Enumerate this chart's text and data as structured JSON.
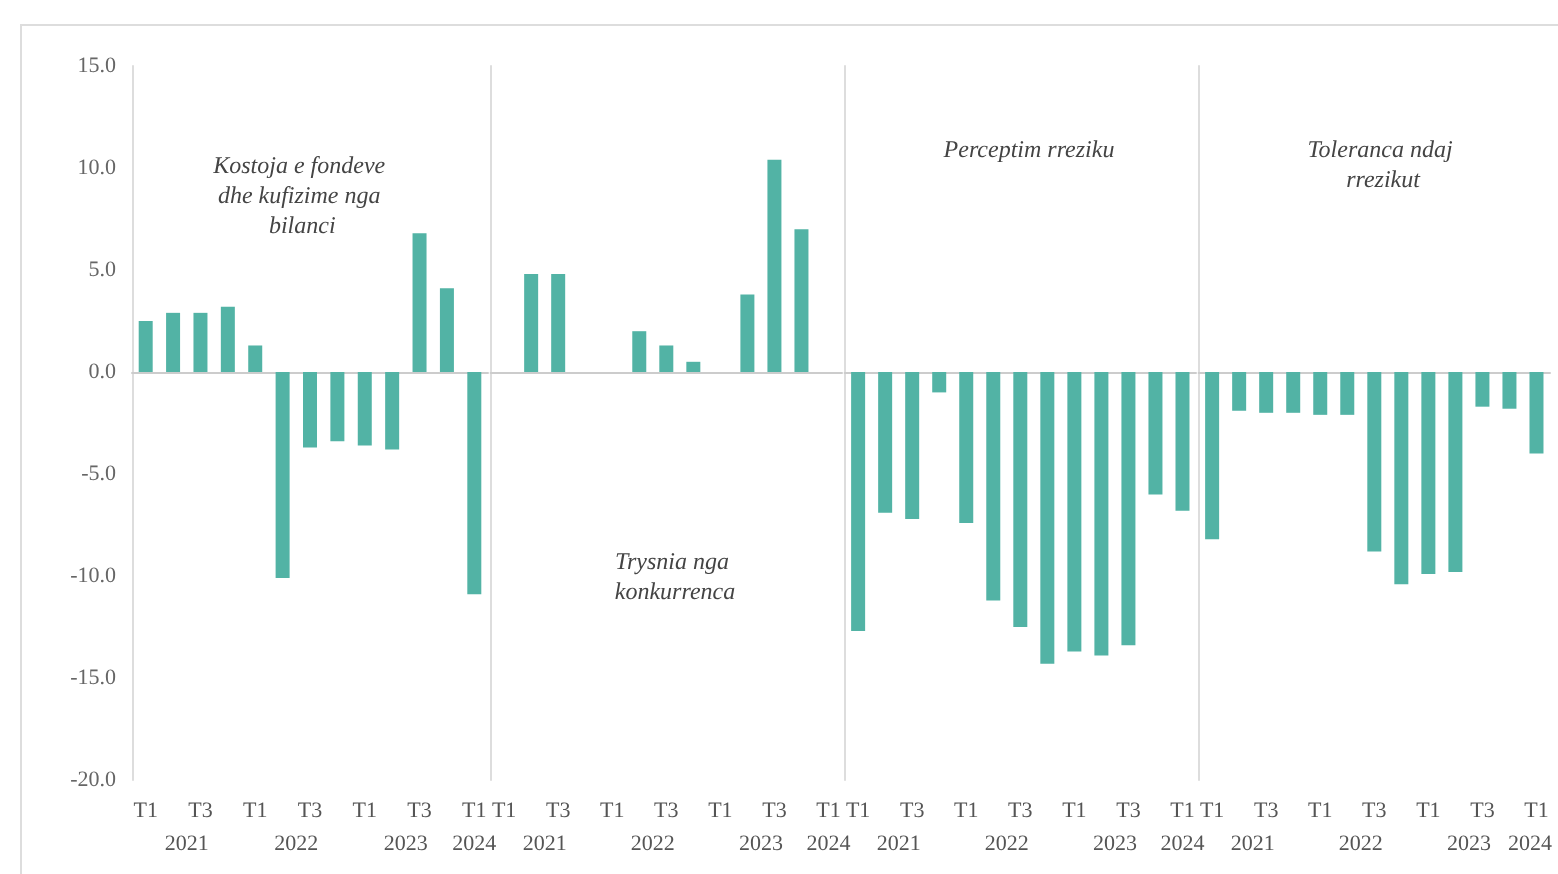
{
  "chart_data": [
    {
      "type": "bar",
      "title": "Kostoja e fondeve dhe kufizime nga bilanci",
      "categories": [
        "T1",
        null,
        "T3",
        null,
        "T1",
        null,
        "T3",
        null,
        "T1",
        null,
        "T3",
        null,
        "T1"
      ],
      "annotations": [
        "2021",
        "2022",
        "2023",
        "2024"
      ],
      "color": "#52b3a5",
      "ylim": [
        -20,
        15
      ],
      "yticks": [
        {
          "value": -20,
          "label": "-20.0"
        },
        {
          "value": -15,
          "label": "-15.0"
        },
        {
          "value": -10,
          "label": "-10.0"
        },
        {
          "value": -5,
          "label": "-5.0"
        },
        {
          "value": 0,
          "label": "0.0"
        },
        {
          "value": 5,
          "label": "5.0"
        },
        {
          "value": 10,
          "label": "10.0"
        },
        {
          "value": 15,
          "label": "15.0"
        }
      ],
      "values": [
        2.5,
        2.9,
        2.9,
        3.2,
        1.3,
        -10.1,
        -3.7,
        -3.4,
        -3.6,
        -3.8,
        6.8,
        4.1,
        -10.9
      ]
    },
    {
      "type": "bar",
      "title": "Trysnia nga konkurrenca",
      "categories": [
        "T1",
        null,
        "T3",
        null,
        "T1",
        null,
        "T3",
        null,
        "T1",
        null,
        "T3",
        null,
        "T1"
      ],
      "annotations": [
        "2021",
        "2022",
        "2023",
        "2024"
      ],
      "color": "#52b3a5",
      "ylim": [
        -20,
        15
      ],
      "tick_labels": "x",
      "values": [
        0,
        4.8,
        4.8,
        0,
        0,
        2.0,
        1.3,
        0.5,
        0,
        3.8,
        10.4,
        7.0,
        0
      ]
    },
    {
      "type": "bar",
      "title": "Perceptim rreziku",
      "categories": [
        "T1",
        null,
        "T3",
        null,
        "T1",
        null,
        "T3",
        null,
        "T1",
        null,
        "T3",
        null,
        "T1"
      ],
      "annotations": [
        "2021",
        "2022",
        "2023",
        "2024"
      ],
      "color": "#52b3a5",
      "ylim": [
        -20,
        15
      ],
      "tick_labels": "x",
      "values": [
        -12.7,
        -6.9,
        -7.2,
        -1.0,
        -7.4,
        -11.2,
        -12.5,
        -14.3,
        -13.7,
        -13.9,
        -13.4,
        -6.0,
        -6.8
      ]
    },
    {
      "type": "bar",
      "title": "Toleranca ndaj rrezikut",
      "categories": [
        "T1",
        null,
        "T3",
        null,
        "T1",
        null,
        "T3",
        null,
        "T1",
        null,
        "T3",
        null,
        "T1"
      ],
      "annotations": [
        "2021",
        "2022",
        "2023",
        "2024"
      ],
      "color": "#52b3a5",
      "ylim": [
        -20,
        15
      ],
      "tick_labels": "x",
      "values": [
        -8.2,
        -1.9,
        -2.0,
        -2.0,
        -2.1,
        -2.1,
        -8.8,
        -10.4,
        -9.9,
        -9.8,
        -1.7,
        -1.8,
        -4.0
      ]
    }
  ]
}
